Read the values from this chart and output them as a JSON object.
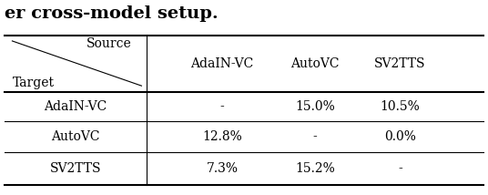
{
  "title_text": "er cross-model setup.",
  "col_headers": [
    "AdaIN-VC",
    "AutoVC",
    "SV2TTS"
  ],
  "row_headers": [
    "AdaIN-VC",
    "AutoVC",
    "SV2TTS"
  ],
  "header_source": "Source",
  "header_target": "Target",
  "cells": [
    [
      "-",
      "15.0%",
      "10.5%"
    ],
    [
      "12.8%",
      "-",
      "0.0%"
    ],
    [
      "7.3%",
      "15.2%",
      "-"
    ]
  ],
  "figsize": [
    5.36,
    2.14
  ],
  "dpi": 100,
  "font_family": "serif",
  "title_fontsize": 14,
  "header_fontsize": 10,
  "cell_fontsize": 10
}
